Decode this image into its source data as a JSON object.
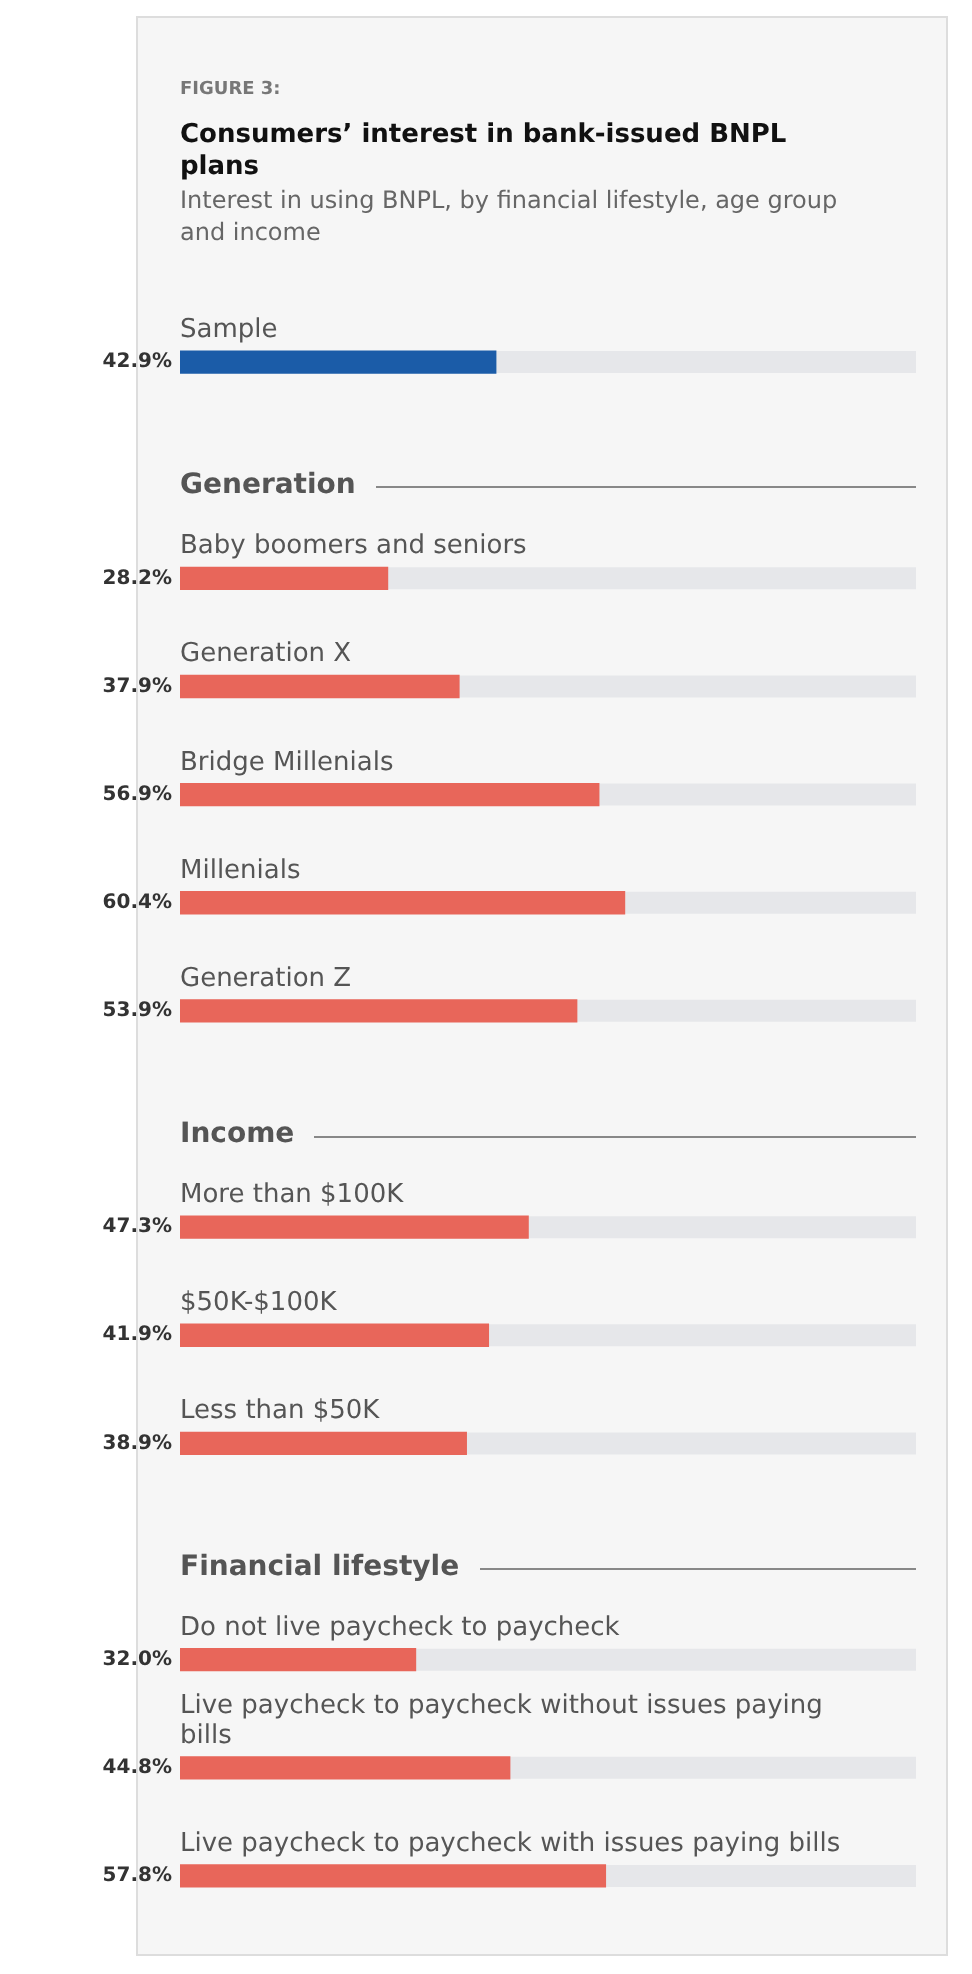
{
  "chart_data": {
    "type": "bar",
    "orientation": "horizontal",
    "title": "Consumers’ interest in bank-issued BNPL plans",
    "subtitle": "Interest in using BNPL, by financial lifestyle, age group and income",
    "annotations": [
      "FIGURE 3:"
    ],
    "categories": [
      "Sample",
      "Generation",
      "Baby boomers and seniors",
      "Generation X",
      "Bridge Millenials",
      "Millenials",
      "Generation Z",
      "Income",
      "More than $100K",
      "$50K-$100K",
      "Less than $50K",
      "Financial lifestyle",
      "Do not live paycheck to paycheck",
      "Live paycheck to paycheck without issues paying bills",
      "Live paycheck to paycheck with issues paying bills"
    ],
    "values": [
      42.9,
      null,
      28.2,
      37.9,
      56.9,
      60.4,
      53.9,
      null,
      47.3,
      41.9,
      38.9,
      null,
      32.0,
      44.8,
      57.8
    ],
    "value_labels": [
      "42.9%",
      null,
      "28.2%",
      "37.9%",
      "56.9%",
      "60.4%",
      "53.9%",
      null,
      "47.3%",
      "41.9%",
      "38.9%",
      null,
      "32.0%",
      "44.8%",
      "57.8%"
    ],
    "colors": [
      "#1b5ca8",
      null,
      "#e8665a",
      "#e8665a",
      "#e8665a",
      "#e8665a",
      "#e8665a",
      null,
      "#e8665a",
      "#e8665a",
      "#e8665a",
      null,
      "#e8665a",
      "#e8665a",
      "#e8665a"
    ],
    "xlim": [
      0,
      100
    ],
    "tick_labels": false,
    "grid": false,
    "legend": false
  }
}
